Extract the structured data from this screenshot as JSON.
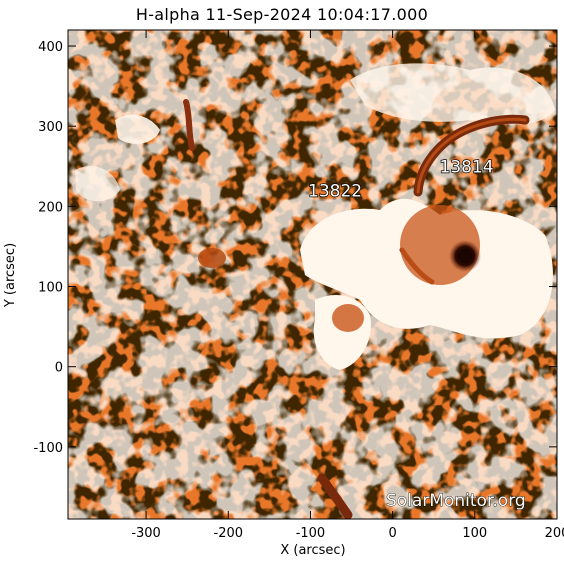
{
  "title": "H-alpha 11-Sep-2024 10:04:17.000",
  "x_axis": {
    "label": "X (arcsec)",
    "range": [
      -395,
      200
    ],
    "ticks": [
      {
        "value": -300,
        "label": "-300"
      },
      {
        "value": -200,
        "label": "-200"
      },
      {
        "value": -100,
        "label": "-100"
      },
      {
        "value": 0,
        "label": "0"
      },
      {
        "value": 100,
        "label": "100"
      },
      {
        "value": 200,
        "label": "200"
      }
    ]
  },
  "y_axis": {
    "label": "Y (arcsec)",
    "range": [
      -190,
      420
    ],
    "ticks": [
      {
        "value": -100,
        "label": "-100"
      },
      {
        "value": 0,
        "label": "0"
      },
      {
        "value": 100,
        "label": "100"
      },
      {
        "value": 200,
        "label": "200"
      },
      {
        "value": 300,
        "label": "300"
      },
      {
        "value": 400,
        "label": "400"
      }
    ]
  },
  "regions": [
    {
      "label": "13822",
      "x": -70,
      "y": 220
    },
    {
      "label": "13814",
      "x": 90,
      "y": 250
    }
  ],
  "watermark": "SolarMonitor.org",
  "colors": {
    "background": "#ffffff",
    "chromosphere_orange": "#e8772a",
    "chromosphere_dark": "#b54a12",
    "filament": "#7a2a0c",
    "plage": "#fff6ec",
    "sunspot": "#1a0500"
  }
}
